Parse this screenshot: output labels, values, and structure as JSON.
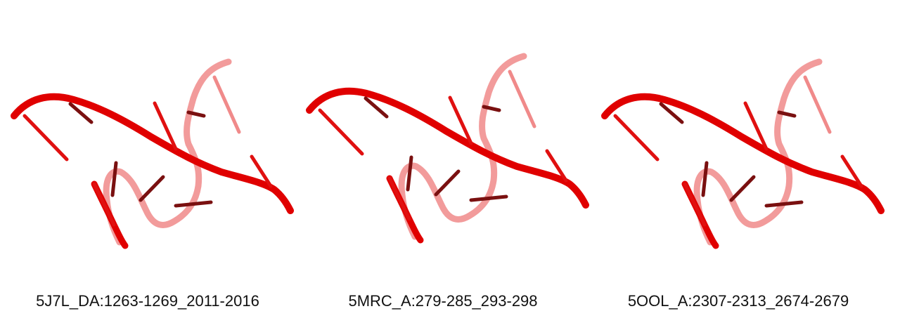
{
  "colors": {
    "strand_front": "#e00000",
    "strand_back": "#f08a8a",
    "base_dark": "#7a1010",
    "base_red": "#e01010",
    "background": "#ffffff",
    "caption_text": "#111111"
  },
  "panels": [
    {
      "caption": "5J7L_DA:1263-1269_2011-2016"
    },
    {
      "caption": "5MRC_A:279-285_293-298"
    },
    {
      "caption": "5OOL_A:2307-2313_2674-2679"
    }
  ]
}
